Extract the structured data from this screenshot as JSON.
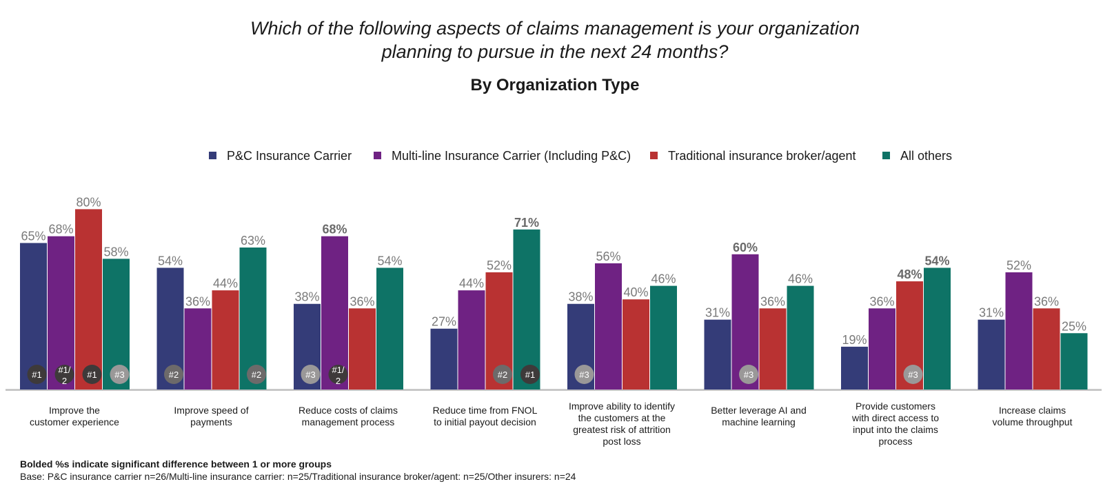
{
  "chart_data": {
    "type": "bar",
    "title": "Which of the following aspects of claims management is your organization planning to pursue in the next 24 months?",
    "title_lines": [
      "Which of the following aspects of claims management is your organization",
      "planning to pursue in the next 24 months?"
    ],
    "subtitle": "By Organization Type",
    "ylim": [
      0,
      100
    ],
    "grid": false,
    "legend_position": "top",
    "categories": [
      "Improve the customer experience",
      "Improve speed of payments",
      "Reduce costs of claims management process",
      "Reduce time from FNOL to initial payout decision",
      "Improve ability to identify the customers at the greatest risk of attrition post loss",
      "Better leverage AI and machine learning",
      "Provide customers with direct access to input into the claims process",
      "Increase claims volume throughput"
    ],
    "category_label_lines": [
      [
        "Improve the",
        "customer experience"
      ],
      [
        "Improve speed of",
        "payments"
      ],
      [
        "Reduce costs of claims",
        "management process"
      ],
      [
        "Reduce time from FNOL",
        "to initial payout decision"
      ],
      [
        "Improve ability to identify",
        "the customers at the",
        "greatest risk of attrition",
        "post loss"
      ],
      [
        "Better leverage AI and",
        "machine learning"
      ],
      [
        "Provide customers",
        "with direct access to",
        "input into the claims",
        "process"
      ],
      [
        "Increase claims",
        "volume throughput"
      ]
    ],
    "series": [
      {
        "name": "P&C Insurance Carrier",
        "color": "#343c78",
        "values": [
          65,
          54,
          38,
          27,
          38,
          31,
          19,
          31
        ],
        "bold": [
          false,
          false,
          false,
          false,
          false,
          false,
          false,
          false
        ]
      },
      {
        "name": "Multi-line Insurance Carrier (Including P&C)",
        "color": "#6f2283",
        "values": [
          68,
          36,
          68,
          44,
          56,
          60,
          36,
          52
        ],
        "bold": [
          false,
          false,
          true,
          false,
          false,
          true,
          false,
          false
        ]
      },
      {
        "name": "Traditional insurance broker/agent",
        "color": "#b93232",
        "values": [
          80,
          44,
          36,
          52,
          40,
          36,
          48,
          36
        ],
        "bold": [
          false,
          false,
          false,
          false,
          false,
          false,
          true,
          false
        ]
      },
      {
        "name": "All others",
        "color": "#0e7366",
        "values": [
          58,
          63,
          54,
          71,
          46,
          46,
          54,
          25
        ],
        "bold": [
          false,
          false,
          false,
          true,
          false,
          false,
          true,
          false
        ]
      }
    ],
    "value_labels": [
      [
        "65%",
        "68%",
        "80%",
        "58%"
      ],
      [
        "54%",
        "36%",
        "44%",
        "63%"
      ],
      [
        "38%",
        "68%",
        "36%",
        "54%"
      ],
      [
        "27%",
        "44%",
        "52%",
        "71%"
      ],
      [
        "38%",
        "56%",
        "40%",
        "46%"
      ],
      [
        "31%",
        "60%",
        "36%",
        "46%"
      ],
      [
        "19%",
        "36%",
        "48%",
        "54%"
      ],
      [
        "31%",
        "52%",
        "36%",
        "25%"
      ]
    ],
    "rank_badges": [
      {
        "category": 0,
        "series": 0,
        "lines": [
          "#1"
        ],
        "shade": "dark"
      },
      {
        "category": 0,
        "series": 1,
        "lines": [
          "#1/",
          "2"
        ],
        "shade": "dark"
      },
      {
        "category": 0,
        "series": 2,
        "lines": [
          "#1"
        ],
        "shade": "dark"
      },
      {
        "category": 0,
        "series": 3,
        "lines": [
          "#3"
        ],
        "shade": "light"
      },
      {
        "category": 1,
        "series": 0,
        "lines": [
          "#2"
        ],
        "shade": "mid"
      },
      {
        "category": 1,
        "series": 3,
        "lines": [
          "#2"
        ],
        "shade": "mid"
      },
      {
        "category": 2,
        "series": 0,
        "lines": [
          "#3"
        ],
        "shade": "light"
      },
      {
        "category": 2,
        "series": 1,
        "lines": [
          "#1/",
          "2"
        ],
        "shade": "dark"
      },
      {
        "category": 3,
        "series": 2,
        "lines": [
          "#2"
        ],
        "shade": "mid"
      },
      {
        "category": 3,
        "series": 3,
        "lines": [
          "#1"
        ],
        "shade": "dark"
      },
      {
        "category": 4,
        "series": 0,
        "lines": [
          "#3"
        ],
        "shade": "light"
      },
      {
        "category": 5,
        "series": 1,
        "lines": [
          "#3"
        ],
        "shade": "light"
      },
      {
        "category": 6,
        "series": 2,
        "lines": [
          "#3"
        ],
        "shade": "light"
      }
    ],
    "badge_colors": {
      "dark": "#3e3a3a",
      "mid": "#6d6a6a",
      "light": "#9a9898"
    }
  },
  "footnotes": {
    "significance": "Bolded %s indicate significant difference between 1 or more groups",
    "base": "Base: P&C insurance carrier n=26/Multi-line insurance carrier: n=25/Traditional insurance broker/agent: n=25/Other insurers: n=24"
  }
}
